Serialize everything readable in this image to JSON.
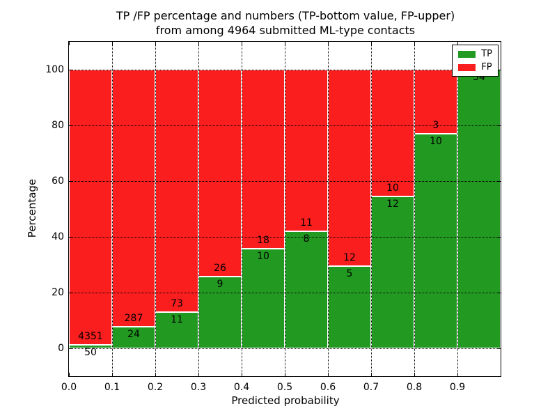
{
  "title": {
    "line1": "TP /FP percentage and numbers (TP-bottom value, FP-upper)",
    "line2": "from among 4964 submitted ML-type contacts"
  },
  "axes": {
    "xlabel": "Predicted probability",
    "ylabel": "Percentage",
    "yticks": [
      0,
      20,
      40,
      60,
      80,
      100
    ],
    "xtick_labels": [
      "0.0",
      "0.1",
      "0.2",
      "0.3",
      "0.4",
      "0.5",
      "0.6",
      "0.7",
      "0.8",
      "0.9"
    ]
  },
  "legend": {
    "position": "upper right",
    "items": [
      {
        "label": "TP",
        "color": "#229a22"
      },
      {
        "label": "FP",
        "color": "#fa1e1e"
      }
    ]
  },
  "chart_data": {
    "type": "bar",
    "stacked": true,
    "normalized": "each 0.1-wide bin scaled to 100%",
    "total_contacts": 4964,
    "bin_edges": [
      0.0,
      0.1,
      0.2,
      0.3,
      0.4,
      0.5,
      0.6,
      0.7,
      0.8,
      0.9,
      1.0
    ],
    "series": [
      {
        "name": "TP",
        "color": "#229a22",
        "counts": [
          50,
          24,
          11,
          9,
          10,
          8,
          5,
          12,
          10,
          34
        ]
      },
      {
        "name": "FP",
        "color": "#fa1e1e",
        "counts": [
          4351,
          287,
          73,
          26,
          18,
          11,
          12,
          10,
          3,
          0
        ]
      }
    ],
    "tp_percent_of_bin": [
      1.1,
      7.7,
      13.1,
      25.7,
      35.7,
      42.1,
      29.4,
      54.5,
      76.9,
      100.0
    ],
    "xlim": [
      0.0,
      1.0
    ],
    "ylim": [
      -10,
      110
    ],
    "grid": "dotted",
    "bar_edge_color": "#ffffff"
  }
}
